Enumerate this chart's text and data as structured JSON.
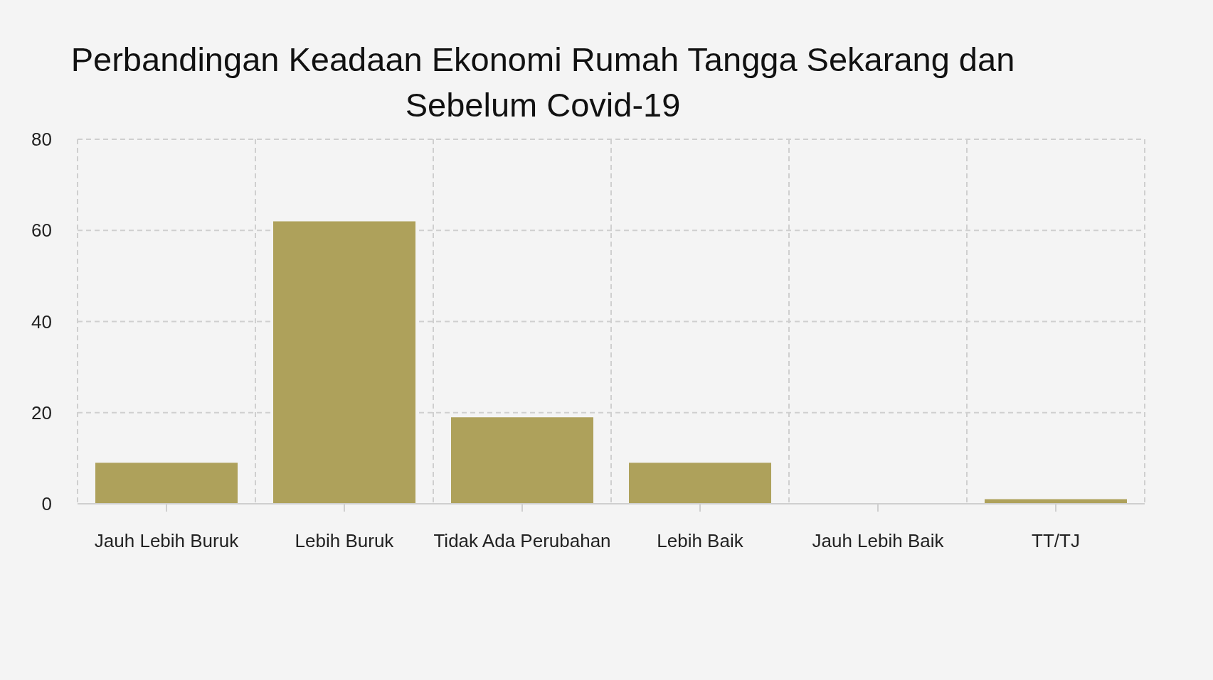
{
  "chart_data": {
    "type": "bar",
    "title": "Perbandingan Keadaan Ekonomi Rumah Tangga Sekarang dan Sebelum Covid-19",
    "categories": [
      "Jauh Lebih Buruk",
      "Lebih Buruk",
      "Tidak Ada Perubahan",
      "Lebih Baik",
      "Jauh Lebih Baik",
      "TT/TJ"
    ],
    "values": [
      9,
      62,
      19,
      9,
      0,
      1
    ],
    "color": "#aea15b",
    "ylim": [
      0,
      80
    ],
    "yticks": [
      0,
      20,
      40,
      60,
      80
    ],
    "grid": true
  }
}
